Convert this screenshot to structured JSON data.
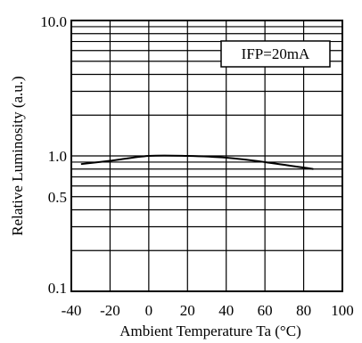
{
  "chart_data": {
    "type": "line",
    "title": "",
    "xlabel": "Ambient Temperature Ta (°C)",
    "ylabel": "Relative Luminosity (a.u.)",
    "xlim": [
      -40,
      100
    ],
    "ylim": [
      0.1,
      10
    ],
    "yscale": "log",
    "grid": true,
    "x_ticks": [
      -40,
      -20,
      0,
      20,
      40,
      60,
      80,
      100
    ],
    "x_tick_labels": [
      "-40",
      "-20",
      "0",
      "20",
      "40",
      "60",
      "80",
      "100"
    ],
    "y_tick_values": [
      10,
      1,
      0.5,
      0.1
    ],
    "y_tick_labels": [
      "10.0",
      "1.0",
      "0.5",
      "0.1"
    ],
    "annotation": "IFP=20mA",
    "series": [
      {
        "x": [
          -35,
          -20,
          0,
          20,
          40,
          60,
          85
        ],
        "y": [
          0.87,
          0.92,
          1.0,
          1.0,
          0.97,
          0.9,
          0.8
        ]
      }
    ]
  },
  "colors": {
    "line": "#000000",
    "grid": "#000000",
    "background": "#ffffff"
  }
}
